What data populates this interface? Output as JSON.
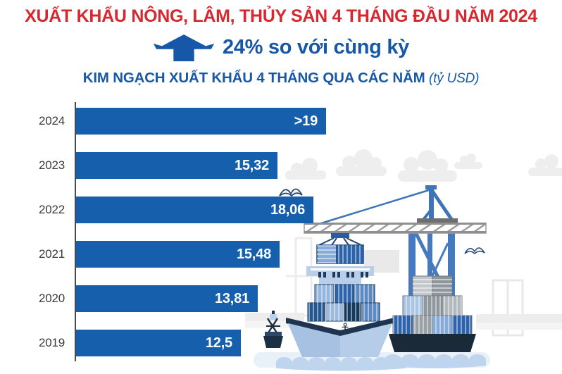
{
  "header": {
    "title": "XUẤT KHẨU NÔNG, LÂM, THỦY SẢN 4 THÁNG ĐẦU NĂM 2024",
    "growth_label": "24% so với cùng kỳ"
  },
  "chart_data": {
    "type": "bar",
    "orientation": "horizontal",
    "title": "KIM NGẠCH XUẤT KHẨU 4 THÁNG QUA CÁC NĂM",
    "unit_label": "(tỷ USD)",
    "unit": "tỷ USD",
    "categories": [
      "2024",
      "2023",
      "2022",
      "2021",
      "2020",
      "2019"
    ],
    "values": [
      19.0,
      15.32,
      18.06,
      15.48,
      13.81,
      12.5
    ],
    "value_labels": [
      ">19",
      "15,32",
      "18,06",
      "15,48",
      "13,81",
      "12,5"
    ],
    "xlim": [
      0,
      19.5
    ],
    "grid": false,
    "legend": "none",
    "bar_color": "#155fad",
    "value_label_position": "inside-end"
  },
  "colors": {
    "title_red": "#d7282f",
    "accent_blue": "#1658a7",
    "bar_blue": "#155fad",
    "year_label_gray": "#3c3c3c",
    "axis_gray": "#4a4a4a",
    "illustration_light_blue": "#b6cde9",
    "illustration_navy": "#1e344f"
  },
  "icons": {
    "growth_arrow": "up-arrow-icon",
    "illustration_elements": [
      "clouds",
      "container-crane",
      "hanging-container",
      "container-ship",
      "anchor",
      "container-barge",
      "buoy",
      "seagulls",
      "waves"
    ]
  }
}
